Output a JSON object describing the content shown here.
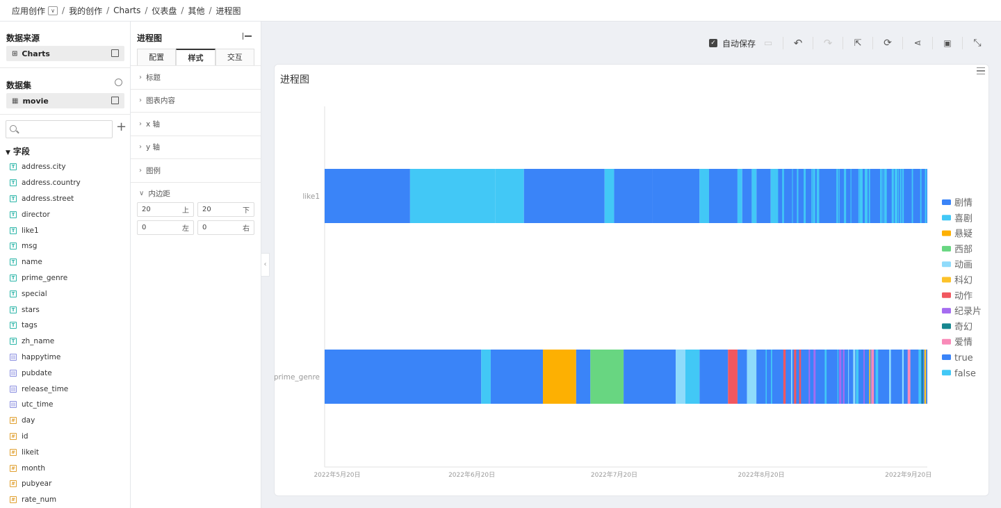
{
  "breadcrumb": [
    "应用创作",
    "我的创作",
    "Charts",
    "仪表盘",
    "其他",
    "进程图"
  ],
  "datasource": {
    "title": "数据来源",
    "item": "Charts"
  },
  "dataset": {
    "title": "数据集",
    "item": "movie"
  },
  "search": {
    "placeholder": ""
  },
  "fields_title": "字段",
  "fields": [
    {
      "name": "address.city",
      "type": "text"
    },
    {
      "name": "address.country",
      "type": "text"
    },
    {
      "name": "address.street",
      "type": "text"
    },
    {
      "name": "director",
      "type": "text"
    },
    {
      "name": "like1",
      "type": "text"
    },
    {
      "name": "msg",
      "type": "text"
    },
    {
      "name": "name",
      "type": "text"
    },
    {
      "name": "prime_genre",
      "type": "text"
    },
    {
      "name": "special",
      "type": "text"
    },
    {
      "name": "stars",
      "type": "text"
    },
    {
      "name": "tags",
      "type": "text"
    },
    {
      "name": "zh_name",
      "type": "text"
    },
    {
      "name": "happytime",
      "type": "date"
    },
    {
      "name": "pubdate",
      "type": "date"
    },
    {
      "name": "release_time",
      "type": "date"
    },
    {
      "name": "utc_time",
      "type": "date"
    },
    {
      "name": "day",
      "type": "num"
    },
    {
      "name": "id",
      "type": "num"
    },
    {
      "name": "likeit",
      "type": "num"
    },
    {
      "name": "month",
      "type": "num"
    },
    {
      "name": "pubyear",
      "type": "num"
    },
    {
      "name": "rate_num",
      "type": "num"
    }
  ],
  "stylepanel": {
    "title": "进程图",
    "tabs": [
      "配置",
      "样式",
      "交互"
    ],
    "active_tab": "样式",
    "sections": [
      "标题",
      "图表内容",
      "x 轴",
      "y 轴",
      "图例",
      "内边距"
    ],
    "padding": [
      {
        "value": "20",
        "unit": "上"
      },
      {
        "value": "20",
        "unit": "下"
      },
      {
        "value": "0",
        "unit": "左"
      },
      {
        "value": "0",
        "unit": "右"
      }
    ]
  },
  "toolbar": {
    "autosave_label": "自动保存",
    "autosave_checked": true
  },
  "card": {
    "title": "进程图"
  },
  "colors": {
    "剧情": "#3a84f8",
    "喜剧": "#42c8f6",
    "悬疑": "#fdb002",
    "西部": "#68d681",
    "动画": "#8fdbfb",
    "科幻": "#fcc22a",
    "动作": "#f1575f",
    "纪录片": "#a56cf0",
    "奇幻": "#16868f",
    "爱情": "#f98ab8",
    "true": "#3a84f8",
    "false": "#42c8f6"
  },
  "chart_data": {
    "type": "bar",
    "orientation": "horizontal",
    "title": "进程图",
    "categories": [
      "like1",
      "prime_genre"
    ],
    "x_ticks": [
      "2022年5月20日",
      "2022年6月20日",
      "2022年7月20日",
      "2022年8月20日",
      "2022年9月20日"
    ],
    "x_range": [
      "2022-05-20",
      "2022-09-24"
    ],
    "legend": [
      "剧情",
      "喜剧",
      "悬疑",
      "西部",
      "动画",
      "科幻",
      "动作",
      "纪录片",
      "奇幻",
      "爱情",
      "true",
      "false"
    ],
    "legend_position": "right",
    "rows": [
      {
        "name": "like1",
        "segments": [
          {
            "start": "2022-05-20",
            "end": "2022-06-07",
            "value": "true"
          },
          {
            "start": "2022-06-07",
            "end": "2022-06-25",
            "value": "false"
          },
          {
            "start": "2022-06-25",
            "end": "2022-07-01",
            "value": "false"
          },
          {
            "start": "2022-07-01",
            "end": "2022-07-18",
            "value": "true"
          },
          {
            "start": "2022-07-18",
            "end": "2022-07-20",
            "value": "false"
          },
          {
            "start": "2022-07-20",
            "end": "2022-07-28",
            "value": "true"
          },
          {
            "start": "2022-07-28",
            "end": "2022-08-07",
            "value": "true"
          },
          {
            "start": "2022-08-07",
            "end": "2022-08-09",
            "value": "false"
          },
          {
            "start": "2022-08-09",
            "end": "2022-08-15",
            "value": "true"
          },
          {
            "start": "2022-08-15",
            "end": "2022-08-16",
            "value": "false"
          },
          {
            "start": "2022-08-16",
            "end": "2022-08-18",
            "value": "true"
          },
          {
            "start": "2022-08-18",
            "end": "2022-08-19",
            "value": "false"
          },
          {
            "start": "2022-08-19",
            "end": "2022-08-22",
            "value": "true"
          },
          {
            "start": "2022-08-22",
            "end": "2022-08-23",
            "value": "false"
          },
          {
            "start": "2022-08-23",
            "end": "2022-09-24",
            "value": "mixed"
          }
        ]
      },
      {
        "name": "prime_genre",
        "segments": [
          {
            "start": "2022-05-20",
            "end": "2022-06-22",
            "value": "剧情"
          },
          {
            "start": "2022-06-22",
            "end": "2022-06-24",
            "value": "喜剧"
          },
          {
            "start": "2022-06-24",
            "end": "2022-07-05",
            "value": "剧情"
          },
          {
            "start": "2022-07-05",
            "end": "2022-07-12",
            "value": "悬疑"
          },
          {
            "start": "2022-07-12",
            "end": "2022-07-15",
            "value": "剧情"
          },
          {
            "start": "2022-07-15",
            "end": "2022-07-22",
            "value": "西部"
          },
          {
            "start": "2022-07-22",
            "end": "2022-08-02",
            "value": "剧情"
          },
          {
            "start": "2022-08-02",
            "end": "2022-08-04",
            "value": "动画"
          },
          {
            "start": "2022-08-04",
            "end": "2022-08-07",
            "value": "喜剧"
          },
          {
            "start": "2022-08-07",
            "end": "2022-08-13",
            "value": "剧情"
          },
          {
            "start": "2022-08-13",
            "end": "2022-08-15",
            "value": "动作"
          },
          {
            "start": "2022-08-15",
            "end": "2022-08-17",
            "value": "剧情"
          },
          {
            "start": "2022-08-17",
            "end": "2022-08-19",
            "value": "动画"
          },
          {
            "start": "2022-08-19",
            "end": "2022-09-24",
            "value": "mixed"
          }
        ]
      }
    ]
  }
}
